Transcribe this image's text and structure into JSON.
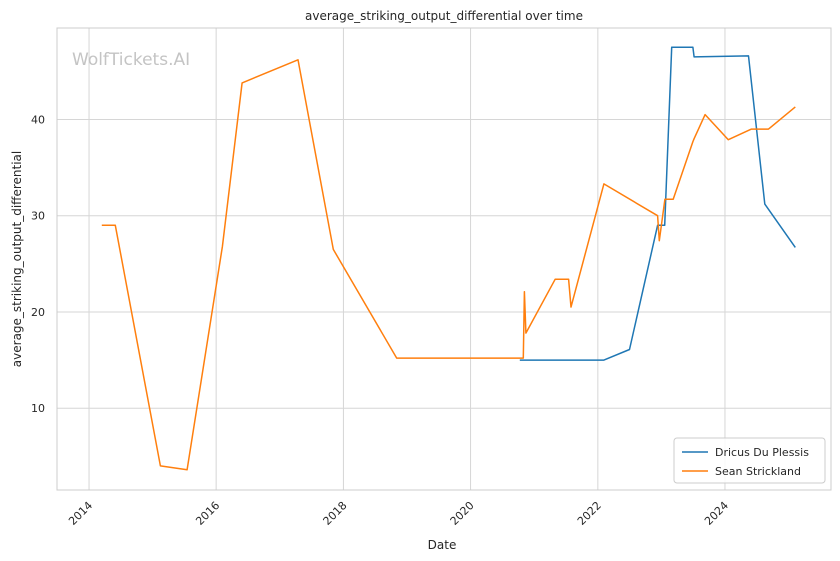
{
  "chart_data": {
    "type": "line",
    "title": "average_striking_output_differential over time",
    "xlabel": "Date",
    "ylabel": "average_striking_output_differential",
    "xlim": [
      "2013-07-01",
      "2025-09-01"
    ],
    "ylim": [
      1.5,
      49.5
    ],
    "x_ticks": [
      "2014",
      "2016",
      "2018",
      "2020",
      "2022",
      "2024"
    ],
    "y_ticks": [
      10,
      20,
      30,
      40
    ],
    "grid": true,
    "legend_position": "lower-right",
    "watermark": "WolfTickets.AI",
    "series": [
      {
        "name": "Dricus Du Plessis",
        "color": "#1f77b4",
        "points": [
          [
            "2020-10-10",
            15.0
          ],
          [
            "2022-02-05",
            15.0
          ],
          [
            "2022-07-02",
            16.1
          ],
          [
            "2022-12-10",
            29.0
          ],
          [
            "2023-01-20",
            29.0
          ],
          [
            "2023-03-01",
            47.5
          ],
          [
            "2023-07-01",
            47.5
          ],
          [
            "2023-07-08",
            46.5
          ],
          [
            "2024-05-15",
            46.6
          ],
          [
            "2024-08-17",
            31.2
          ],
          [
            "2025-02-08",
            26.7
          ]
        ]
      },
      {
        "name": "Sean Strickland",
        "color": "#ff7f0e",
        "points": [
          [
            "2014-03-15",
            29.0
          ],
          [
            "2014-06-01",
            29.0
          ],
          [
            "2015-02-15",
            4.0
          ],
          [
            "2015-07-18",
            3.6
          ],
          [
            "2016-02-06",
            26.8
          ],
          [
            "2016-05-29",
            43.8
          ],
          [
            "2017-04-15",
            46.2
          ],
          [
            "2017-11-04",
            26.5
          ],
          [
            "2018-11-03",
            15.2
          ],
          [
            "2020-10-30",
            15.2
          ],
          [
            "2020-11-05",
            22.1
          ],
          [
            "2020-11-14",
            17.8
          ],
          [
            "2021-05-01",
            23.4
          ],
          [
            "2021-07-17",
            23.4
          ],
          [
            "2021-07-31",
            20.5
          ],
          [
            "2022-02-05",
            33.3
          ],
          [
            "2022-12-10",
            30.0
          ],
          [
            "2022-12-20",
            27.4
          ],
          [
            "2023-01-21",
            31.7
          ],
          [
            "2023-03-10",
            31.7
          ],
          [
            "2023-07-01",
            37.7
          ],
          [
            "2023-07-08",
            38.0
          ],
          [
            "2023-09-09",
            40.5
          ],
          [
            "2024-01-20",
            37.9
          ],
          [
            "2024-06-01",
            39.0
          ],
          [
            "2024-09-07",
            39.0
          ],
          [
            "2025-02-08",
            41.3
          ]
        ]
      }
    ]
  }
}
